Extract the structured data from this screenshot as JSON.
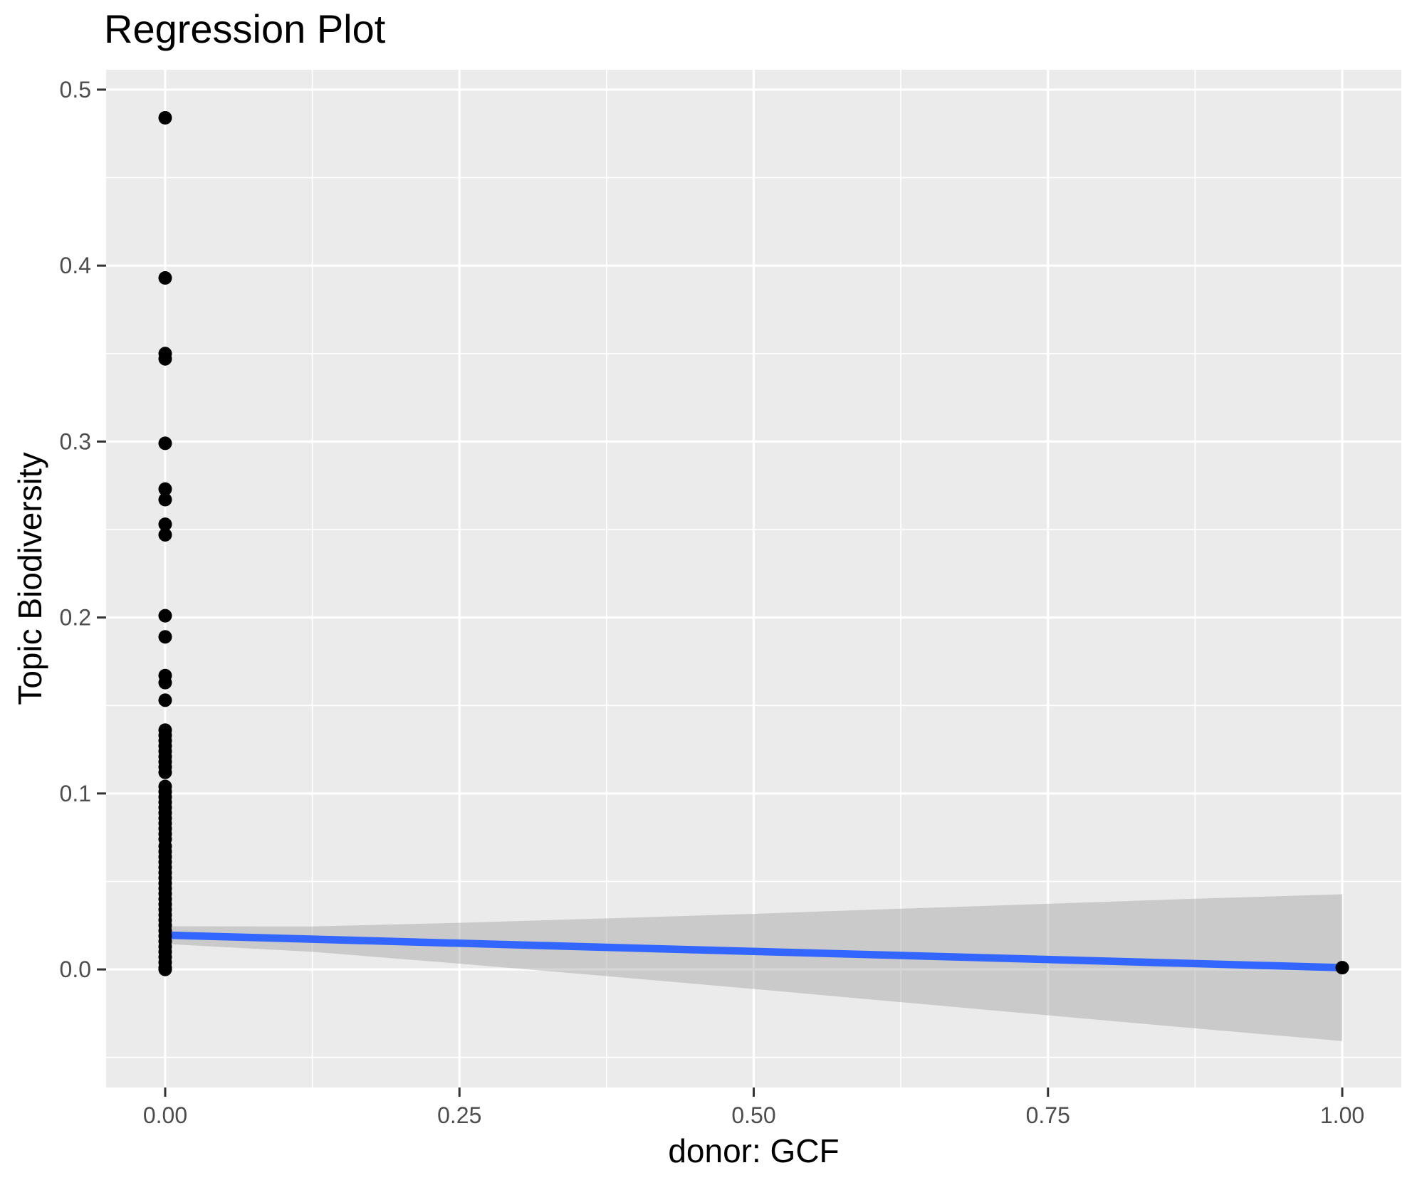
{
  "title": {
    "text": "Regression Plot"
  },
  "axes": {
    "x": {
      "title": "donor: GCF",
      "tick_labels": [
        "0.00",
        "0.25",
        "0.50",
        "0.75",
        "1.00"
      ],
      "tick_values": [
        0,
        0.25,
        0.5,
        0.75,
        1.0
      ]
    },
    "y": {
      "title": "Topic Biodiversity",
      "tick_labels": [
        "0.0",
        "0.1",
        "0.2",
        "0.3",
        "0.4",
        "0.5"
      ],
      "tick_values": [
        0,
        0.1,
        0.2,
        0.3,
        0.4,
        0.5
      ]
    }
  },
  "style": {
    "panel_background": "#EBEBEB",
    "grid_color": "#FFFFFF",
    "point_color": "#000000",
    "line_color": "#3366FF",
    "band_color": "#999999",
    "band_opacity": 0.4,
    "tick_mark_color": "#333333",
    "tick_label_color": "#4D4D4D",
    "title_color": "#000000"
  },
  "chart_data": {
    "type": "scatter",
    "title": "Regression Plot",
    "xlabel": "donor: GCF",
    "ylabel": "Topic Biodiversity",
    "xlim": [
      -0.0502,
      1.0502
    ],
    "ylim": [
      -0.0671,
      0.5113
    ],
    "grid": "on",
    "x_major_ticks": [
      0,
      0.25,
      0.5,
      0.75,
      1.0
    ],
    "x_minor_ticks": [
      0.125,
      0.375,
      0.625,
      0.875
    ],
    "y_major_ticks": [
      0,
      0.1,
      0.2,
      0.3,
      0.4,
      0.5
    ],
    "y_minor_ticks": [
      -0.05,
      0.05,
      0.15,
      0.25,
      0.35,
      0.45
    ],
    "points": [
      [
        0,
        0.484
      ],
      [
        0,
        0.393
      ],
      [
        0,
        0.35
      ],
      [
        0,
        0.347
      ],
      [
        0,
        0.299
      ],
      [
        0,
        0.273
      ],
      [
        0,
        0.267
      ],
      [
        0,
        0.253
      ],
      [
        0,
        0.247
      ],
      [
        0,
        0.201
      ],
      [
        0,
        0.189
      ],
      [
        0,
        0.167
      ],
      [
        0,
        0.163
      ],
      [
        0,
        0.153
      ],
      [
        0,
        0.136
      ],
      [
        0,
        0.133
      ],
      [
        0,
        0.13
      ],
      [
        0,
        0.127
      ],
      [
        0,
        0.124
      ],
      [
        0,
        0.121
      ],
      [
        0,
        0.118
      ],
      [
        0,
        0.115
      ],
      [
        0,
        0.112
      ],
      [
        0,
        0.104
      ],
      [
        0,
        0.101
      ],
      [
        0,
        0.098
      ],
      [
        0,
        0.095
      ],
      [
        0,
        0.092
      ],
      [
        0,
        0.089
      ],
      [
        0,
        0.086
      ],
      [
        0,
        0.083
      ],
      [
        0,
        0.08
      ],
      [
        0,
        0.077
      ],
      [
        0,
        0.074
      ],
      [
        0,
        0.07
      ],
      [
        0,
        0.067
      ],
      [
        0,
        0.064
      ],
      [
        0,
        0.061
      ],
      [
        0,
        0.058
      ],
      [
        0,
        0.055
      ],
      [
        0,
        0.052
      ],
      [
        0,
        0.049
      ],
      [
        0,
        0.046
      ],
      [
        0,
        0.043
      ],
      [
        0,
        0.04
      ],
      [
        0,
        0.037
      ],
      [
        0,
        0.034
      ],
      [
        0,
        0.031
      ],
      [
        0,
        0.028
      ],
      [
        0,
        0.025
      ],
      [
        0,
        0.022
      ],
      [
        0,
        0.019
      ],
      [
        0,
        0.016
      ],
      [
        0,
        0.013
      ],
      [
        0,
        0.01
      ],
      [
        0,
        0.007
      ],
      [
        0,
        0.004
      ],
      [
        0,
        0.001
      ],
      [
        0,
        0.0
      ],
      [
        1,
        0.001
      ]
    ],
    "regression_line": {
      "method": "lm",
      "x": [
        0,
        1
      ],
      "y": [
        0.0195,
        0.001
      ]
    },
    "confidence_band": {
      "x": [
        0,
        0.125,
        0.25,
        0.375,
        0.5,
        0.625,
        0.75,
        0.875,
        1.0
      ],
      "upper": [
        0.0245,
        0.0244,
        0.0265,
        0.029,
        0.0316,
        0.0345,
        0.0373,
        0.0402,
        0.0427
      ],
      "lower": [
        0.0145,
        0.01,
        0.0033,
        -0.0038,
        -0.0111,
        -0.0186,
        -0.0261,
        -0.0335,
        -0.0407
      ]
    }
  }
}
